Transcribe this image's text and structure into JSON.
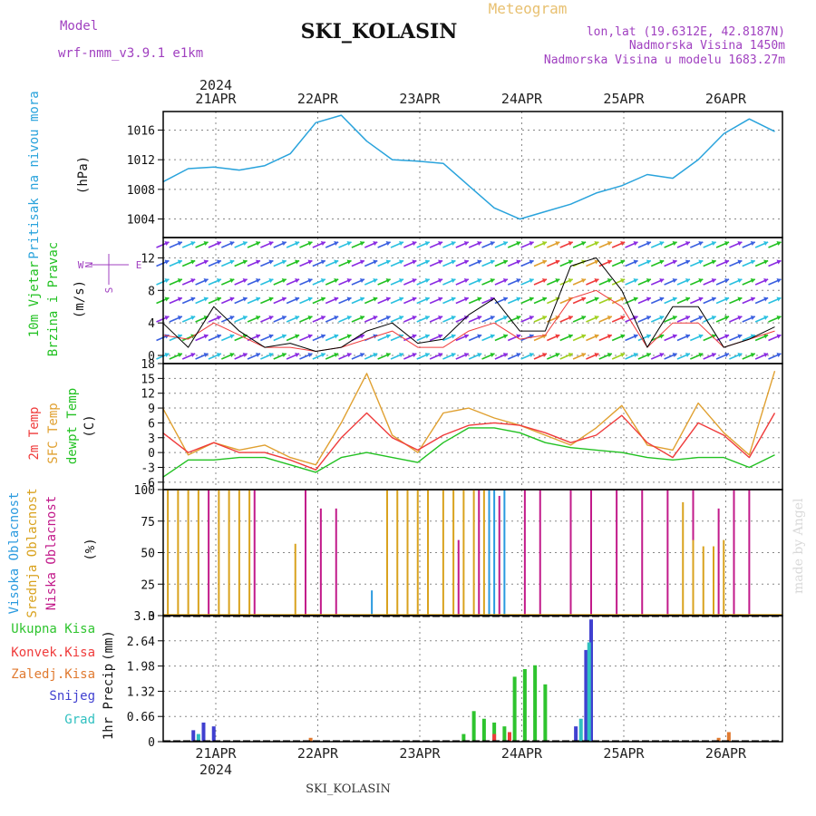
{
  "header": {
    "title": "SKI_KOLASIN",
    "product": "Meteogram",
    "model_label": "Model",
    "model_name": "wrf-nmm_v3.9.1 e1km",
    "location_line": "lon,lat (19.6312E, 42.8187N)",
    "elevation_line": "Nadmorska Visina 1450m",
    "model_elevation_line": "Nadmorska Visina u modelu 1683.27m",
    "footer_station": "SKI_KOLASIN",
    "watermark": "made by Angel"
  },
  "time_axis": {
    "year": "2024",
    "day_labels": [
      "21APR",
      "22APR",
      "23APR",
      "24APR",
      "25APR",
      "26APR"
    ]
  },
  "colors": {
    "pressure": "#29a3dc",
    "temp2m": "#ef3b3b",
    "sfc_temp": "#e0a030",
    "dewpoint": "#22c122",
    "low_cloud": "#c21a8a",
    "mid_cloud": "#d9a21e",
    "high_cloud": "#2a9adf",
    "total_precip": "#2ec42e",
    "conv_precip": "#ef3b3b",
    "frozen_precip": "#e07a30",
    "snow": "#4040d0",
    "hail": "#30c0c0",
    "wind_speed": "#000000",
    "gust": "#ef3b3b",
    "magenta_label": "#a040c0",
    "grid": "#888888"
  },
  "chart_data": [
    {
      "type": "line",
      "panel": "pressure",
      "ylabel_main": "Pritisak na nivou mora",
      "ylabel_unit": "(hPa)",
      "yticks": [
        "1004",
        "1008",
        "1012",
        "1016"
      ],
      "ylim": [
        1001.5,
        1018.5
      ],
      "x_days": [
        0,
        0.25,
        0.5,
        0.75,
        1,
        1.25,
        1.5,
        1.75,
        2,
        2.25,
        2.5,
        2.75,
        3,
        3.25,
        3.5,
        3.75,
        4,
        4.25,
        4.5,
        4.75,
        5,
        5.25,
        5.5,
        5.75,
        6
      ],
      "series": [
        {
          "values": [
            1009.0,
            1010.8,
            1011.0,
            1010.6,
            1011.2,
            1012.8,
            1017.0,
            1018.0,
            1014.5,
            1012.0,
            1011.8,
            1011.5,
            1008.5,
            1005.5,
            1004.0,
            1005.0,
            1006.0,
            1007.5,
            1008.5,
            1010.0,
            1009.5,
            1012.0,
            1015.5,
            1017.5,
            1015.8
          ]
        }
      ]
    },
    {
      "type": "line",
      "panel": "wind",
      "ylabel_main": [
        "10m Vjetar",
        "Brzina i Pravac"
      ],
      "ylabel_unit": "(m/s)",
      "compass": [
        "N",
        "W",
        "E",
        "S"
      ],
      "yticks": [
        "0",
        "4",
        "8",
        "12"
      ],
      "ylim": [
        -1,
        14.5
      ],
      "x_days": [
        0,
        0.25,
        0.5,
        0.75,
        1,
        1.25,
        1.5,
        1.75,
        2,
        2.25,
        2.5,
        2.75,
        3,
        3.25,
        3.5,
        3.75,
        4,
        4.25,
        4.5,
        4.75,
        5,
        5.25,
        5.5,
        5.75,
        6
      ],
      "series": [
        {
          "values": [
            4.0,
            1.0,
            6.0,
            3.0,
            1.0,
            1.5,
            0.5,
            1.0,
            3.0,
            4.0,
            1.5,
            2.0,
            5.0,
            7.0,
            3.0,
            3.0,
            11.0,
            12.0,
            8.0,
            1.0,
            6.0,
            6.0,
            1.0,
            2.0,
            3.5
          ]
        },
        {
          "values": [
            2.5,
            2.0,
            4.0,
            2.5,
            1.0,
            1.0,
            0.5,
            1.0,
            2.0,
            3.0,
            1.0,
            1.0,
            3.0,
            4.0,
            2.0,
            2.5,
            7.0,
            8.0,
            6.0,
            1.0,
            4.0,
            4.0,
            1.0,
            2.0,
            3.0
          ]
        }
      ]
    },
    {
      "type": "line",
      "panel": "temperature",
      "ylabel_main": [
        "2m Temp",
        "SFC Temp",
        "dewpt Temp"
      ],
      "ylabel_unit": "(C)",
      "yticks": [
        "-6",
        "-3",
        "0",
        "3",
        "6",
        "9",
        "12",
        "15",
        "18"
      ],
      "ylim": [
        -7.5,
        18
      ],
      "x_days": [
        0,
        0.25,
        0.5,
        0.75,
        1,
        1.25,
        1.5,
        1.75,
        2,
        2.25,
        2.5,
        2.75,
        3,
        3.25,
        3.5,
        3.75,
        4,
        4.25,
        4.5,
        4.75,
        5,
        5.25,
        5.5,
        5.75,
        6
      ],
      "series": [
        {
          "name": "2m Temp",
          "values": [
            4.0,
            0.0,
            2.0,
            0.0,
            0.0,
            -1.5,
            -3.5,
            3.0,
            8.0,
            3.0,
            0.5,
            3.5,
            5.5,
            6.0,
            5.5,
            4.0,
            2.0,
            3.5,
            7.5,
            2.0,
            -1.0,
            6.0,
            3.5,
            -1.0,
            8.0
          ]
        },
        {
          "name": "SFC Temp",
          "values": [
            9.0,
            -0.5,
            2.0,
            0.5,
            1.5,
            -1.0,
            -2.5,
            6.0,
            16.0,
            3.5,
            0.0,
            8.0,
            9.0,
            7.0,
            5.5,
            3.5,
            1.5,
            5.0,
            9.5,
            1.5,
            0.5,
            10.0,
            4.0,
            -0.5,
            16.5
          ]
        },
        {
          "name": "dewpt Temp",
          "values": [
            -5.0,
            -1.5,
            -1.5,
            -1.0,
            -1.0,
            -2.5,
            -4.0,
            -1.0,
            0.0,
            -1.0,
            -2.0,
            2.0,
            5.0,
            5.0,
            4.0,
            2.0,
            1.0,
            0.5,
            0.0,
            -1.0,
            -1.5,
            -1.0,
            -1.0,
            -3.0,
            -0.5
          ]
        }
      ]
    },
    {
      "type": "bar",
      "panel": "clouds",
      "ylabel_main": [
        "Visoka Oblacnost",
        "Srednja Oblacnost",
        "Niska Oblacnost"
      ],
      "ylabel_unit": "(%)",
      "yticks": [
        "0",
        "25",
        "50",
        "75",
        "100"
      ],
      "ylim": [
        0,
        100
      ],
      "series": [
        {
          "name": "Niska Oblacnost",
          "x_days": [
            0.45,
            0.9,
            1.4,
            1.55,
            1.7,
            2.9,
            3.1,
            3.3,
            3.55,
            3.7,
            4.0,
            4.2,
            4.45,
            4.7,
            4.95,
            5.2,
            5.45,
            5.6,
            5.75
          ],
          "values": [
            100,
            100,
            100,
            85,
            85,
            60,
            100,
            95,
            100,
            100,
            100,
            100,
            100,
            100,
            100,
            100,
            85,
            100,
            100
          ]
        },
        {
          "name": "Srednja Oblacnost",
          "x_days": [
            0.05,
            0.15,
            0.25,
            0.35,
            0.55,
            0.65,
            0.75,
            0.85,
            1.3,
            2.2,
            2.3,
            2.4,
            2.5,
            2.6,
            2.75,
            2.85,
            2.95,
            3.05,
            3.15,
            5.1,
            5.2,
            5.3,
            5.4,
            5.5
          ],
          "values": [
            100,
            100,
            100,
            100,
            100,
            100,
            100,
            100,
            57,
            100,
            100,
            100,
            100,
            100,
            100,
            100,
            100,
            100,
            100,
            90,
            60,
            55,
            55,
            60
          ]
        },
        {
          "name": "Visoka Oblacnost",
          "x_days": [
            2.05,
            3.2,
            3.25,
            3.35
          ],
          "values": [
            20,
            100,
            100,
            100
          ]
        }
      ]
    },
    {
      "type": "bar",
      "panel": "precip",
      "ylabel_main": "1hr Precip",
      "ylabel_unit": "(mm)",
      "legend": [
        "Ukupna Kisa",
        "Konvek.Kisa",
        "Zaledj.Kisa",
        "Snijeg",
        "Grad"
      ],
      "yticks": [
        "0",
        "0.66",
        "1.32",
        "1.98",
        "2.64",
        "3.3"
      ],
      "ylim": [
        0,
        3.3
      ],
      "series": [
        {
          "name": "Ukupna Kisa",
          "x_days": [
            2.95,
            3.05,
            3.15,
            3.25,
            3.35,
            3.45,
            3.55,
            3.65,
            3.75
          ],
          "values": [
            0.2,
            0.8,
            0.6,
            0.5,
            0.4,
            1.7,
            1.9,
            2.0,
            1.5
          ]
        },
        {
          "name": "Konvek.Kisa",
          "x_days": [
            3.25,
            3.4
          ],
          "values": [
            0.2,
            0.25
          ]
        },
        {
          "name": "Zaledj.Kisa",
          "x_days": [
            1.45,
            5.45,
            5.55
          ],
          "values": [
            0.1,
            0.1,
            0.25
          ]
        },
        {
          "name": "Snijeg",
          "x_days": [
            0.3,
            0.4,
            0.5,
            4.05,
            4.15,
            4.2
          ],
          "values": [
            0.3,
            0.5,
            0.4,
            0.4,
            2.4,
            3.2
          ]
        },
        {
          "name": "Grad",
          "x_days": [
            0.35,
            4.1,
            4.18
          ],
          "values": [
            0.2,
            0.6,
            2.6
          ]
        }
      ]
    }
  ]
}
